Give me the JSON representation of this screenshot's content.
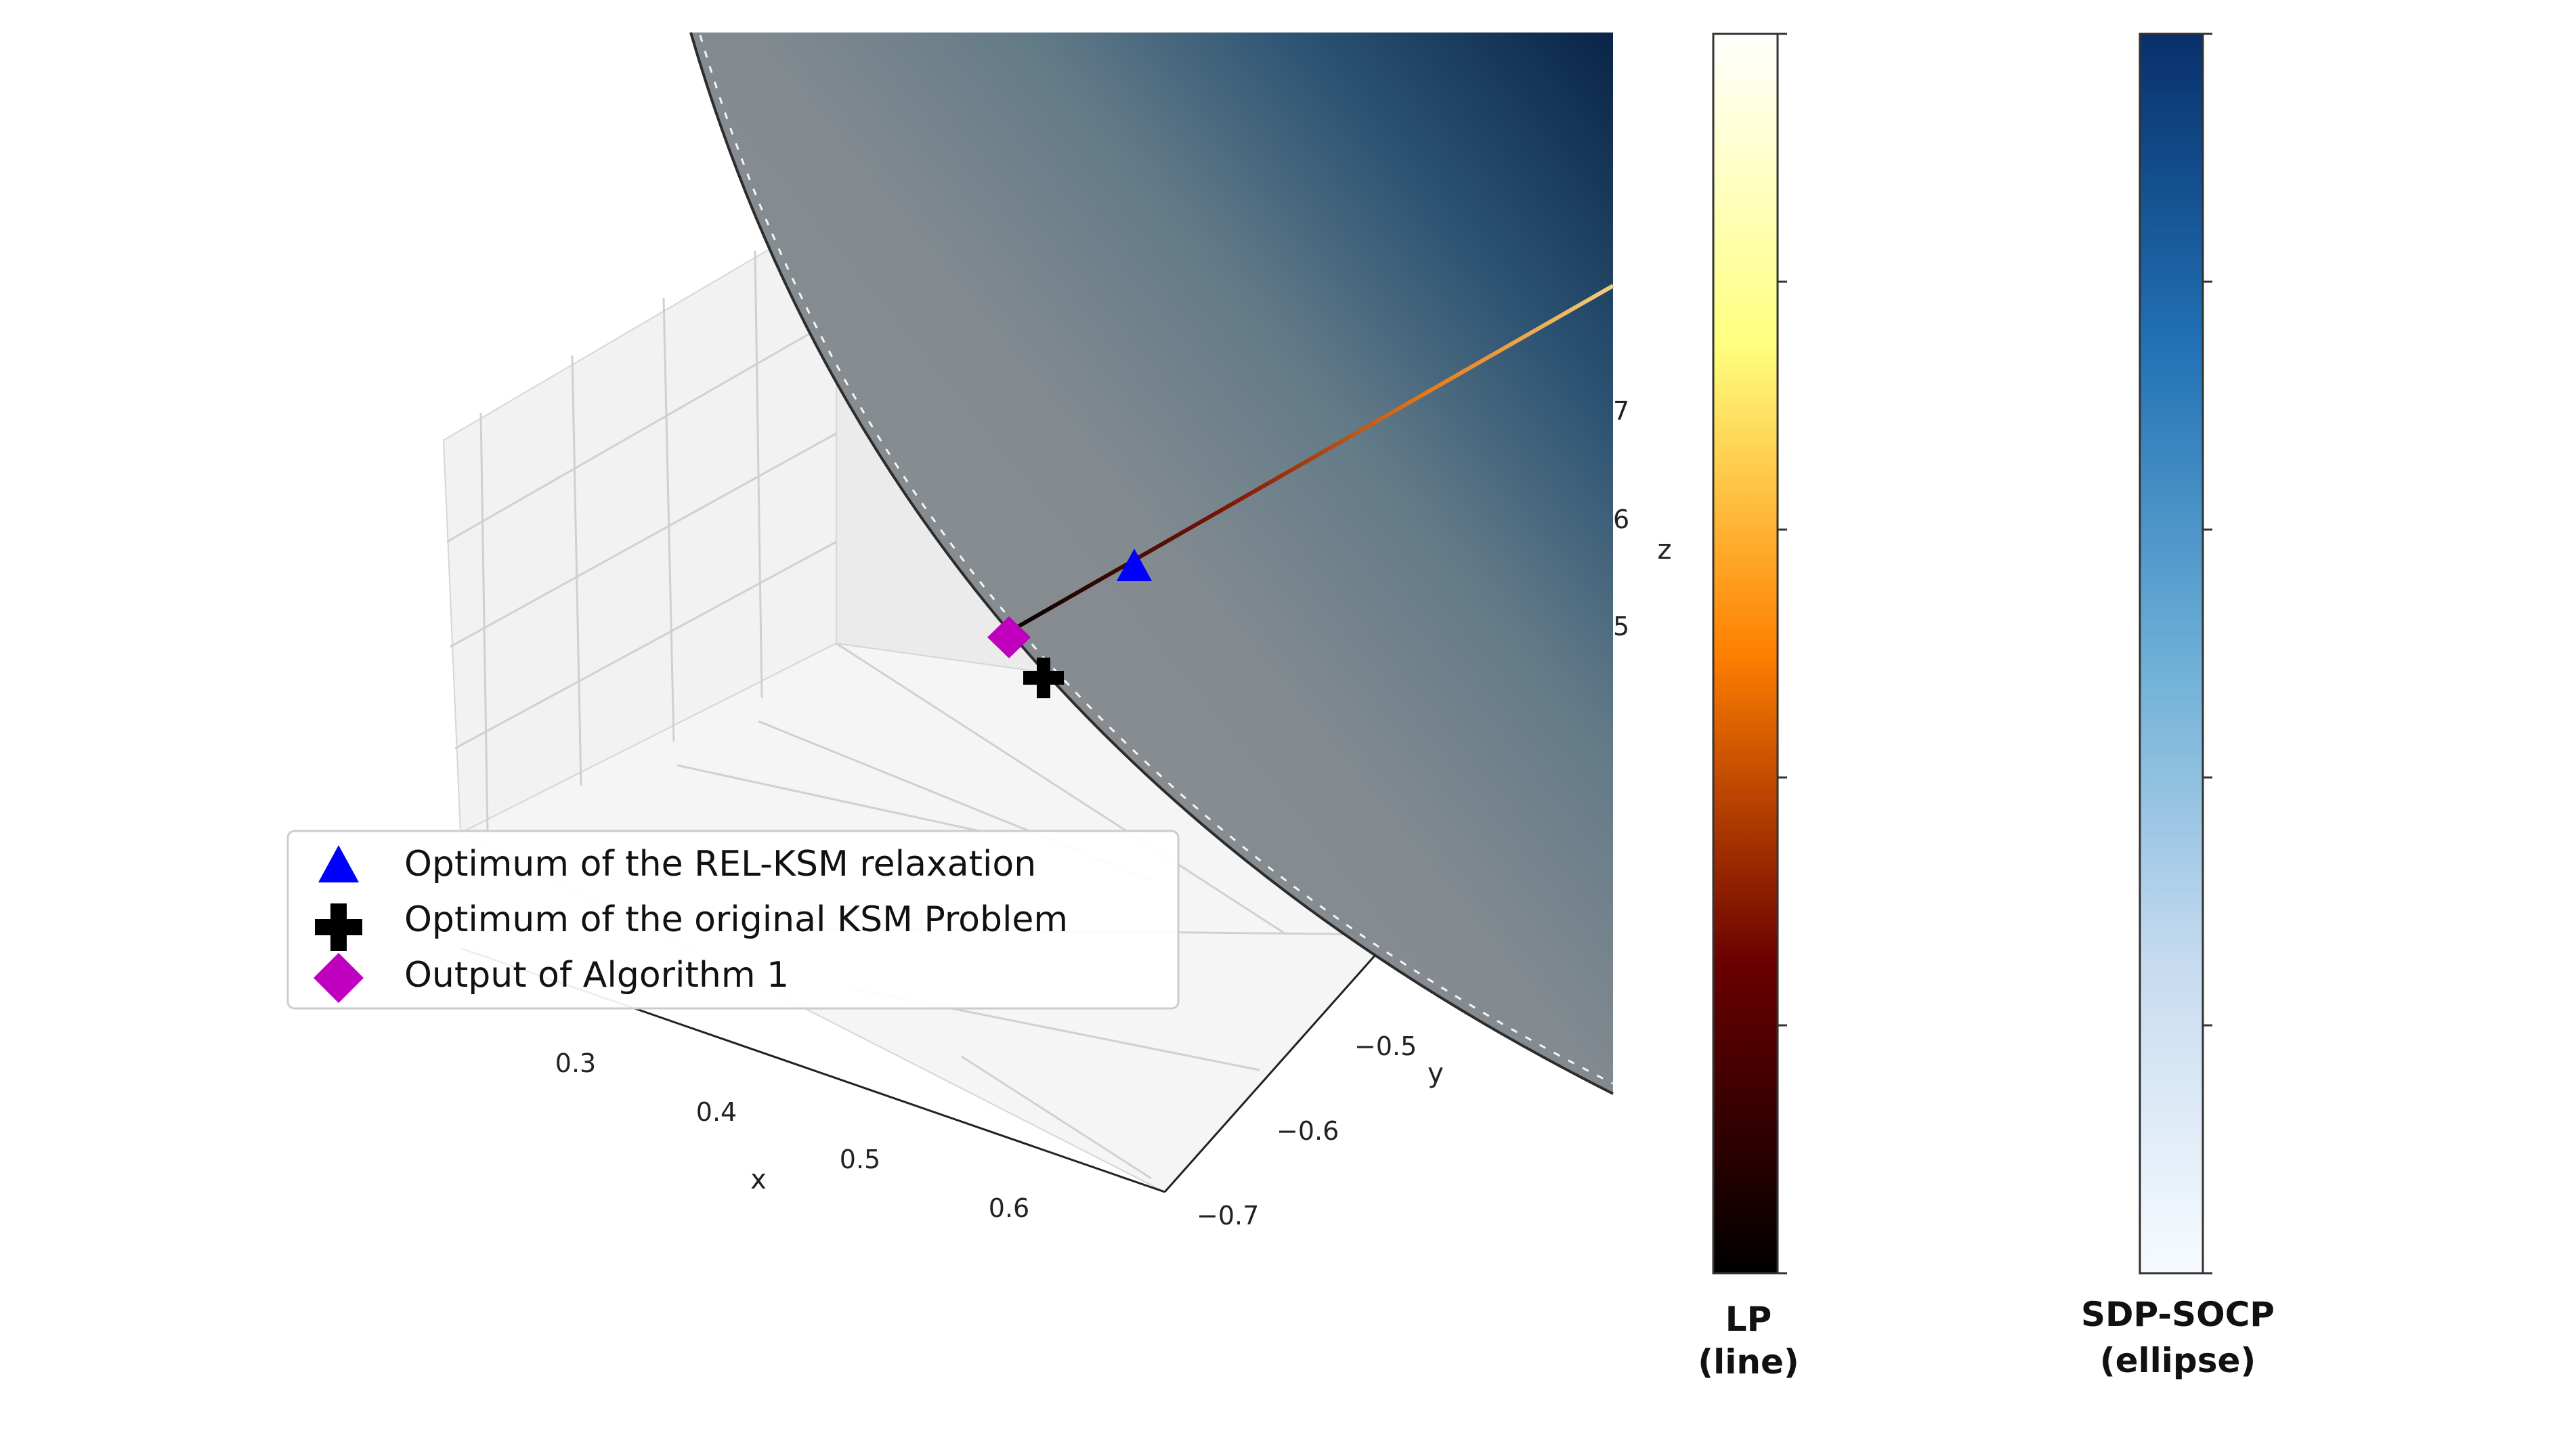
{
  "chart_data": {
    "type": "scatter",
    "projection": "3d",
    "axes": {
      "x": {
        "label": "x",
        "ticks": [
          "0.3",
          "0.4",
          "0.5",
          "0.6"
        ]
      },
      "y": {
        "label": "y",
        "ticks": [
          "−0.5",
          "−0.6",
          "−0.7"
        ]
      },
      "z": {
        "label": "z",
        "ticks_partially_visible": [
          "7",
          "6",
          "5"
        ]
      }
    },
    "surfaces": [
      {
        "name": "SDP-SOCP (ellipse)",
        "type": "surface",
        "colormap": "Blues"
      },
      {
        "name": "LP (line)",
        "type": "line",
        "colormap": "afmhot"
      }
    ],
    "markers": [
      {
        "label": "Optimum of the REL-KSM relaxation",
        "marker": "triangle",
        "color": "#0000ff"
      },
      {
        "label": "Optimum of the original KSM Problem",
        "marker": "plus",
        "color": "#000000"
      },
      {
        "label": "Output of Algorithm 1",
        "marker": "diamond",
        "color": "#bf00bf"
      }
    ],
    "colorbars": [
      {
        "title_line1": "LP",
        "title_line2": "(line)",
        "colormap": "afmhot",
        "tick_count": 6
      },
      {
        "title_line1": "SDP-SOCP",
        "title_line2": "(ellipse)",
        "colormap": "Blues",
        "tick_count": 6
      }
    ],
    "legend": {
      "placement": "lower-left"
    }
  }
}
